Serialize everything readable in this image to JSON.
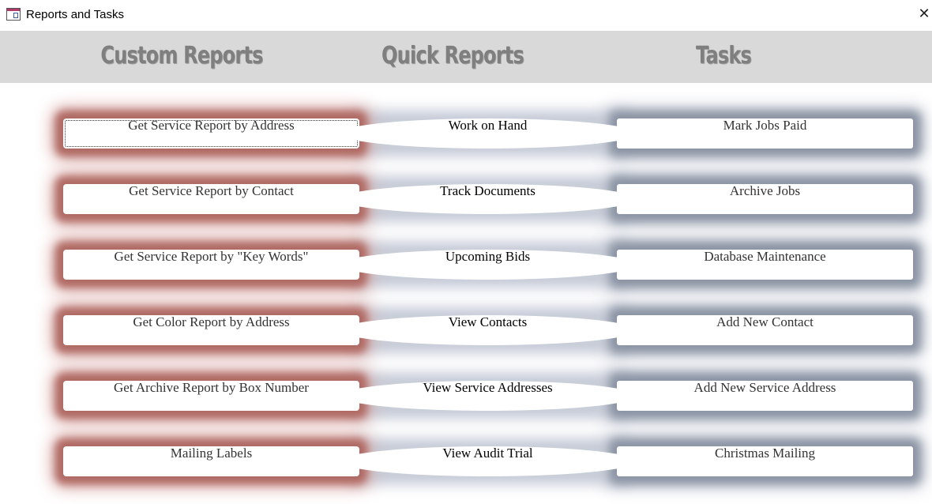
{
  "window": {
    "title": "Reports and Tasks",
    "close_icon": "close-icon"
  },
  "headings": {
    "custom": "Custom Reports",
    "quick": "Quick Reports",
    "tasks": "Tasks"
  },
  "custom_reports": [
    "Get Service Report by Address",
    "Get Service Report by Contact",
    "Get Service Report by \"Key Words\"",
    "Get Color Report by Address",
    "Get Archive Report by Box Number",
    "Mailing Labels"
  ],
  "quick_reports": [
    "Work on Hand",
    "Track Documents",
    "Upcoming Bids",
    "View Contacts",
    "View Service Addresses",
    "View Audit Trial"
  ],
  "tasks": [
    "Mark Jobs Paid",
    "Archive Jobs",
    "Database Maintenance",
    "Add New Contact",
    "Add New Service Address",
    "Christmas Mailing"
  ],
  "colors": {
    "header_bg": "#d9d9d9",
    "heading_text": "#7f7f7f",
    "custom_glow": "#b06a64",
    "task_glow": "#8a93a3"
  }
}
